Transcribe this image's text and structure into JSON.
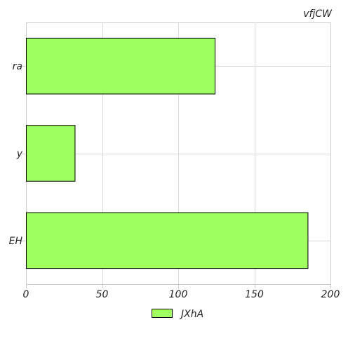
{
  "chart_data": {
    "type": "bar",
    "orientation": "horizontal",
    "title": "vfjCW",
    "xlabel": "",
    "ylabel": "",
    "categories": [
      "ra",
      "y",
      "EH"
    ],
    "series": [
      {
        "name": "JXhA",
        "values": [
          124,
          32,
          185
        ],
        "color": "#a0ff60"
      }
    ],
    "xlim": [
      0,
      200
    ],
    "xticks": [
      0,
      50,
      100,
      150,
      200
    ],
    "grid": true,
    "legend_position": "bottom"
  },
  "colors": {
    "bar_fill": "#a0ff60",
    "bar_edge": "#000000",
    "grid": "#d9d9d9",
    "axes_edge": "#cccccc"
  }
}
